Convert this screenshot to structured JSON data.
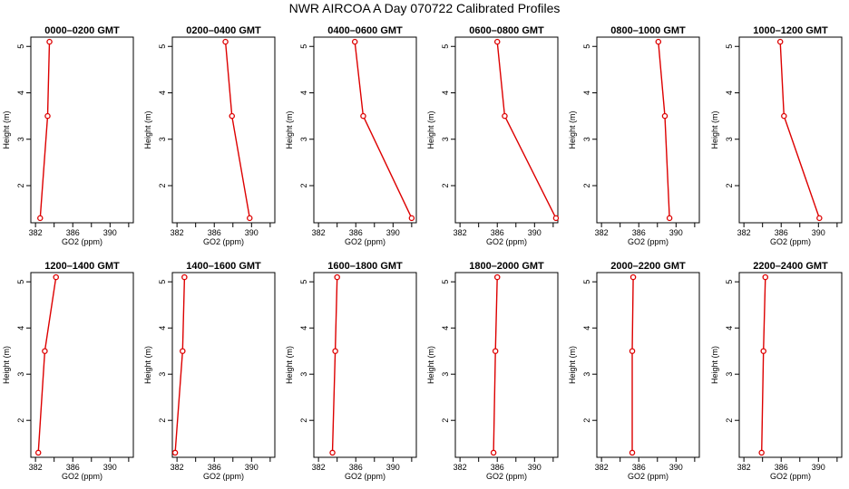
{
  "title": "NWR AIRCOA A  Day 070722  Calibrated Profiles",
  "colors": {
    "series": "#dd0000",
    "axis": "#000000"
  },
  "chart_data": [
    {
      "type": "line",
      "title": "0000–0200 GMT",
      "xlabel": "GO2 (ppm)",
      "ylabel": "Height (m)",
      "xlim": [
        381.5,
        392.5
      ],
      "ylim": [
        1.2,
        5.2
      ],
      "xticks": [
        382,
        386,
        390
      ],
      "yticks": [
        2,
        3,
        4,
        5
      ],
      "x": [
        382.5,
        383.3,
        383.5
      ],
      "y": [
        1.3,
        3.5,
        5.1
      ]
    },
    {
      "type": "line",
      "title": "0200–0400 GMT",
      "xlabel": "GO2 (ppm)",
      "ylabel": "Height (m)",
      "xlim": [
        381.5,
        392.5
      ],
      "ylim": [
        1.2,
        5.2
      ],
      "xticks": [
        382,
        386,
        390
      ],
      "yticks": [
        2,
        3,
        4,
        5
      ],
      "x": [
        389.8,
        387.9,
        387.2
      ],
      "y": [
        1.3,
        3.5,
        5.1
      ]
    },
    {
      "type": "line",
      "title": "0400–0600 GMT",
      "xlabel": "GO2 (ppm)",
      "ylabel": "Height (m)",
      "xlim": [
        381.5,
        392.5
      ],
      "ylim": [
        1.2,
        5.2
      ],
      "xticks": [
        382,
        386,
        390
      ],
      "yticks": [
        2,
        3,
        4,
        5
      ],
      "x": [
        392.0,
        386.8,
        385.9
      ],
      "y": [
        1.3,
        3.5,
        5.1
      ]
    },
    {
      "type": "line",
      "title": "0600–0800 GMT",
      "xlabel": "GO2 (ppm)",
      "ylabel": "Height (m)",
      "xlim": [
        381.5,
        392.5
      ],
      "ylim": [
        1.2,
        5.2
      ],
      "xticks": [
        382,
        386,
        390
      ],
      "yticks": [
        2,
        3,
        4,
        5
      ],
      "x": [
        392.3,
        386.8,
        386.0
      ],
      "y": [
        1.3,
        3.5,
        5.1
      ]
    },
    {
      "type": "line",
      "title": "0800–1000 GMT",
      "xlabel": "GO2 (ppm)",
      "ylabel": "Height (m)",
      "xlim": [
        381.5,
        392.5
      ],
      "ylim": [
        1.2,
        5.2
      ],
      "xticks": [
        382,
        386,
        390
      ],
      "yticks": [
        2,
        3,
        4,
        5
      ],
      "x": [
        389.3,
        388.8,
        388.1
      ],
      "y": [
        1.3,
        3.5,
        5.1
      ]
    },
    {
      "type": "line",
      "title": "1000–1200 GMT",
      "xlabel": "GO2 (ppm)",
      "ylabel": "Height (m)",
      "xlim": [
        381.5,
        392.5
      ],
      "ylim": [
        1.2,
        5.2
      ],
      "xticks": [
        382,
        386,
        390
      ],
      "yticks": [
        2,
        3,
        4,
        5
      ],
      "x": [
        390.1,
        386.3,
        385.9
      ],
      "y": [
        1.3,
        3.5,
        5.1
      ]
    },
    {
      "type": "line",
      "title": "1200–1400 GMT",
      "xlabel": "GO2 (ppm)",
      "ylabel": "Height (m)",
      "xlim": [
        381.5,
        392.5
      ],
      "ylim": [
        1.2,
        5.2
      ],
      "xticks": [
        382,
        386,
        390
      ],
      "yticks": [
        2,
        3,
        4,
        5
      ],
      "x": [
        382.3,
        383.0,
        384.2
      ],
      "y": [
        1.3,
        3.5,
        5.1
      ]
    },
    {
      "type": "line",
      "title": "1400–1600 GMT",
      "xlabel": "GO2 (ppm)",
      "ylabel": "Height (m)",
      "xlim": [
        381.5,
        392.5
      ],
      "ylim": [
        1.2,
        5.2
      ],
      "xticks": [
        382,
        386,
        390
      ],
      "yticks": [
        2,
        3,
        4,
        5
      ],
      "x": [
        381.8,
        382.6,
        382.8
      ],
      "y": [
        1.3,
        3.5,
        5.1
      ]
    },
    {
      "type": "line",
      "title": "1600–1800 GMT",
      "xlabel": "GO2 (ppm)",
      "ylabel": "Height (m)",
      "xlim": [
        381.5,
        392.5
      ],
      "ylim": [
        1.2,
        5.2
      ],
      "xticks": [
        382,
        386,
        390
      ],
      "yticks": [
        2,
        3,
        4,
        5
      ],
      "x": [
        383.5,
        383.8,
        384.0
      ],
      "y": [
        1.3,
        3.5,
        5.1
      ]
    },
    {
      "type": "line",
      "title": "1800–2000 GMT",
      "xlabel": "GO2 (ppm)",
      "ylabel": "Height (m)",
      "xlim": [
        381.5,
        392.5
      ],
      "ylim": [
        1.2,
        5.2
      ],
      "xticks": [
        382,
        386,
        390
      ],
      "yticks": [
        2,
        3,
        4,
        5
      ],
      "x": [
        385.6,
        385.8,
        386.0
      ],
      "y": [
        1.3,
        3.5,
        5.1
      ]
    },
    {
      "type": "line",
      "title": "2000–2200 GMT",
      "xlabel": "GO2 (ppm)",
      "ylabel": "Height (m)",
      "xlim": [
        381.5,
        392.5
      ],
      "ylim": [
        1.2,
        5.2
      ],
      "xticks": [
        382,
        386,
        390
      ],
      "yticks": [
        2,
        3,
        4,
        5
      ],
      "x": [
        385.3,
        385.3,
        385.4
      ],
      "y": [
        1.3,
        3.5,
        5.1
      ]
    },
    {
      "type": "line",
      "title": "2200–2400 GMT",
      "xlabel": "GO2 (ppm)",
      "ylabel": "Height (m)",
      "xlim": [
        381.5,
        392.5
      ],
      "ylim": [
        1.2,
        5.2
      ],
      "xticks": [
        382,
        386,
        390
      ],
      "yticks": [
        2,
        3,
        4,
        5
      ],
      "x": [
        383.9,
        384.1,
        384.3
      ],
      "y": [
        1.3,
        3.5,
        5.1
      ]
    }
  ]
}
